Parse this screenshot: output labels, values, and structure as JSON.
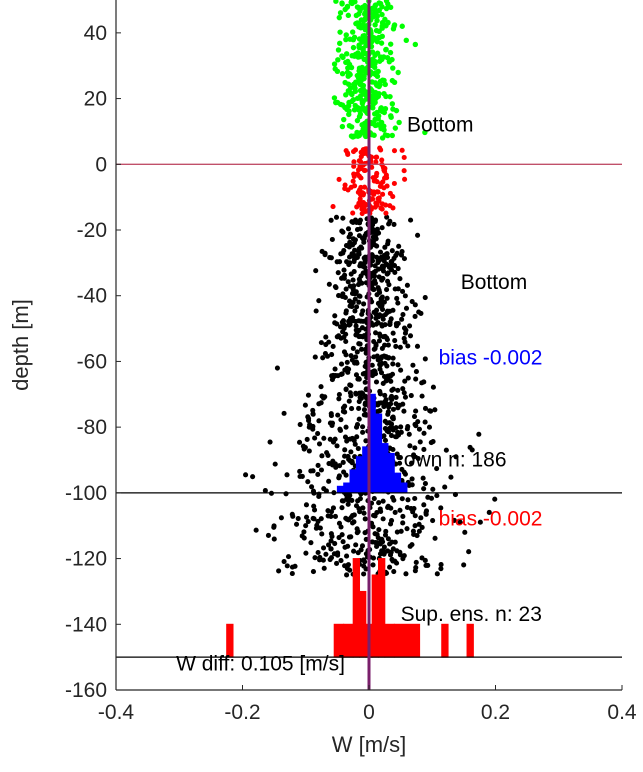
{
  "chart_data": {
    "type": "scatter",
    "title": "",
    "xlabel": "W [m/s]",
    "ylabel": "depth [m]",
    "xlim": [
      -0.4,
      0.4
    ],
    "ylim": [
      -160,
      50
    ],
    "x_ticks": [
      -0.4,
      -0.2,
      0,
      0.2,
      0.4
    ],
    "x_tick_labels": [
      "-0.4",
      "-0.2",
      "0",
      "0.2",
      "0.4"
    ],
    "y_ticks": [
      40,
      20,
      0,
      -20,
      -40,
      -60,
      -80,
      -100,
      -120,
      -140,
      -160
    ],
    "y_tick_labels": [
      "40",
      "20",
      "0",
      "-20",
      "-40",
      "-60",
      "-80",
      "-100",
      "-120",
      "-140",
      "-160"
    ],
    "grid": false,
    "colors": {
      "down_scatter": "#000000",
      "up_scatter_above_bottom": "#00ff00",
      "up_scatter_near_bottom": "#ff0000",
      "blue_histogram": "#0000ff",
      "red_histogram": "#ff0000",
      "zero_line": "#c0506a",
      "center_line": "#7a1f6b",
      "reference_lines": "#000000",
      "upper_bottom_text": "#000000",
      "lower_bottom_text": "#000000",
      "blue_bias_text": "#0000ff",
      "red_bias_text": "#ff0000",
      "count_text": "#000000",
      "wdiff_text": "#000000"
    },
    "scatter_groups": [
      {
        "name": "black",
        "depth_range": [
          -125,
          -16
        ],
        "spread_at_top": 0.04,
        "spread_at_bottom": 0.12,
        "count": 1100
      },
      {
        "name": "red",
        "depth_range": [
          -15,
          5
        ],
        "spread": 0.035,
        "count": 140
      },
      {
        "name": "green",
        "depth_range": [
          8,
          50
        ],
        "spread": 0.04,
        "count": 380
      }
    ],
    "horizontal_lines": [
      {
        "y": 0,
        "xlim": [
          -0.4,
          0.4
        ],
        "color": "#c0506a"
      },
      {
        "y": -100,
        "xlim": [
          -0.4,
          0.4
        ],
        "color": "#000000"
      },
      {
        "y": -150,
        "xlim": [
          -0.4,
          0.4
        ],
        "color": "#000000"
      }
    ],
    "vertical_line": {
      "x": 0,
      "y_range": [
        -160,
        50
      ]
    },
    "blue_histogram": {
      "baseline": -100,
      "bin_edges": [
        -0.05,
        -0.04,
        -0.03,
        -0.02,
        -0.01,
        0,
        0.01,
        0.02,
        0.03,
        0.04,
        0.05,
        0.06
      ],
      "tops": [
        -98,
        -97,
        -93,
        -89,
        -86,
        -70,
        -76,
        -85,
        -88,
        -94,
        -97
      ]
    },
    "red_histogram": {
      "baseline": -150,
      "bin_edges": [
        -0.225,
        -0.215,
        -0.055,
        -0.04,
        -0.025,
        -0.015,
        -0.005,
        0.005,
        0.015,
        0.025,
        0.04,
        0.08,
        0.115,
        0.125,
        0.155,
        0.165
      ],
      "tops": [
        -140,
        -150,
        -140,
        -140,
        -120,
        -130,
        -140,
        -125,
        -120,
        -140,
        -140,
        -140,
        -140,
        -140,
        -140
      ],
      "gaps": [
        1,
        11,
        13
      ]
    },
    "annotations": [
      {
        "id": "upper_bottom",
        "text": "Bottom",
        "x": 0.06,
        "y": 10
      },
      {
        "id": "lower_bottom",
        "text": "Bottom",
        "x": 0.145,
        "y": -38
      },
      {
        "id": "blue_bias",
        "text": "bias -0.002",
        "x": 0.11,
        "y": -61
      },
      {
        "id": "down_count",
        "text": "own n: 186",
        "x": 0.055,
        "y": -92
      },
      {
        "id": "red_bias",
        "text": "bias -0.002",
        "x": 0.11,
        "y": -110
      },
      {
        "id": "up_count",
        "text": "Sup. ens. n: 23",
        "x": 0.05,
        "y": -139
      },
      {
        "id": "wdiff",
        "text": "W diff:  0.105 [m/s]",
        "x": -0.305,
        "y": -154
      }
    ]
  }
}
